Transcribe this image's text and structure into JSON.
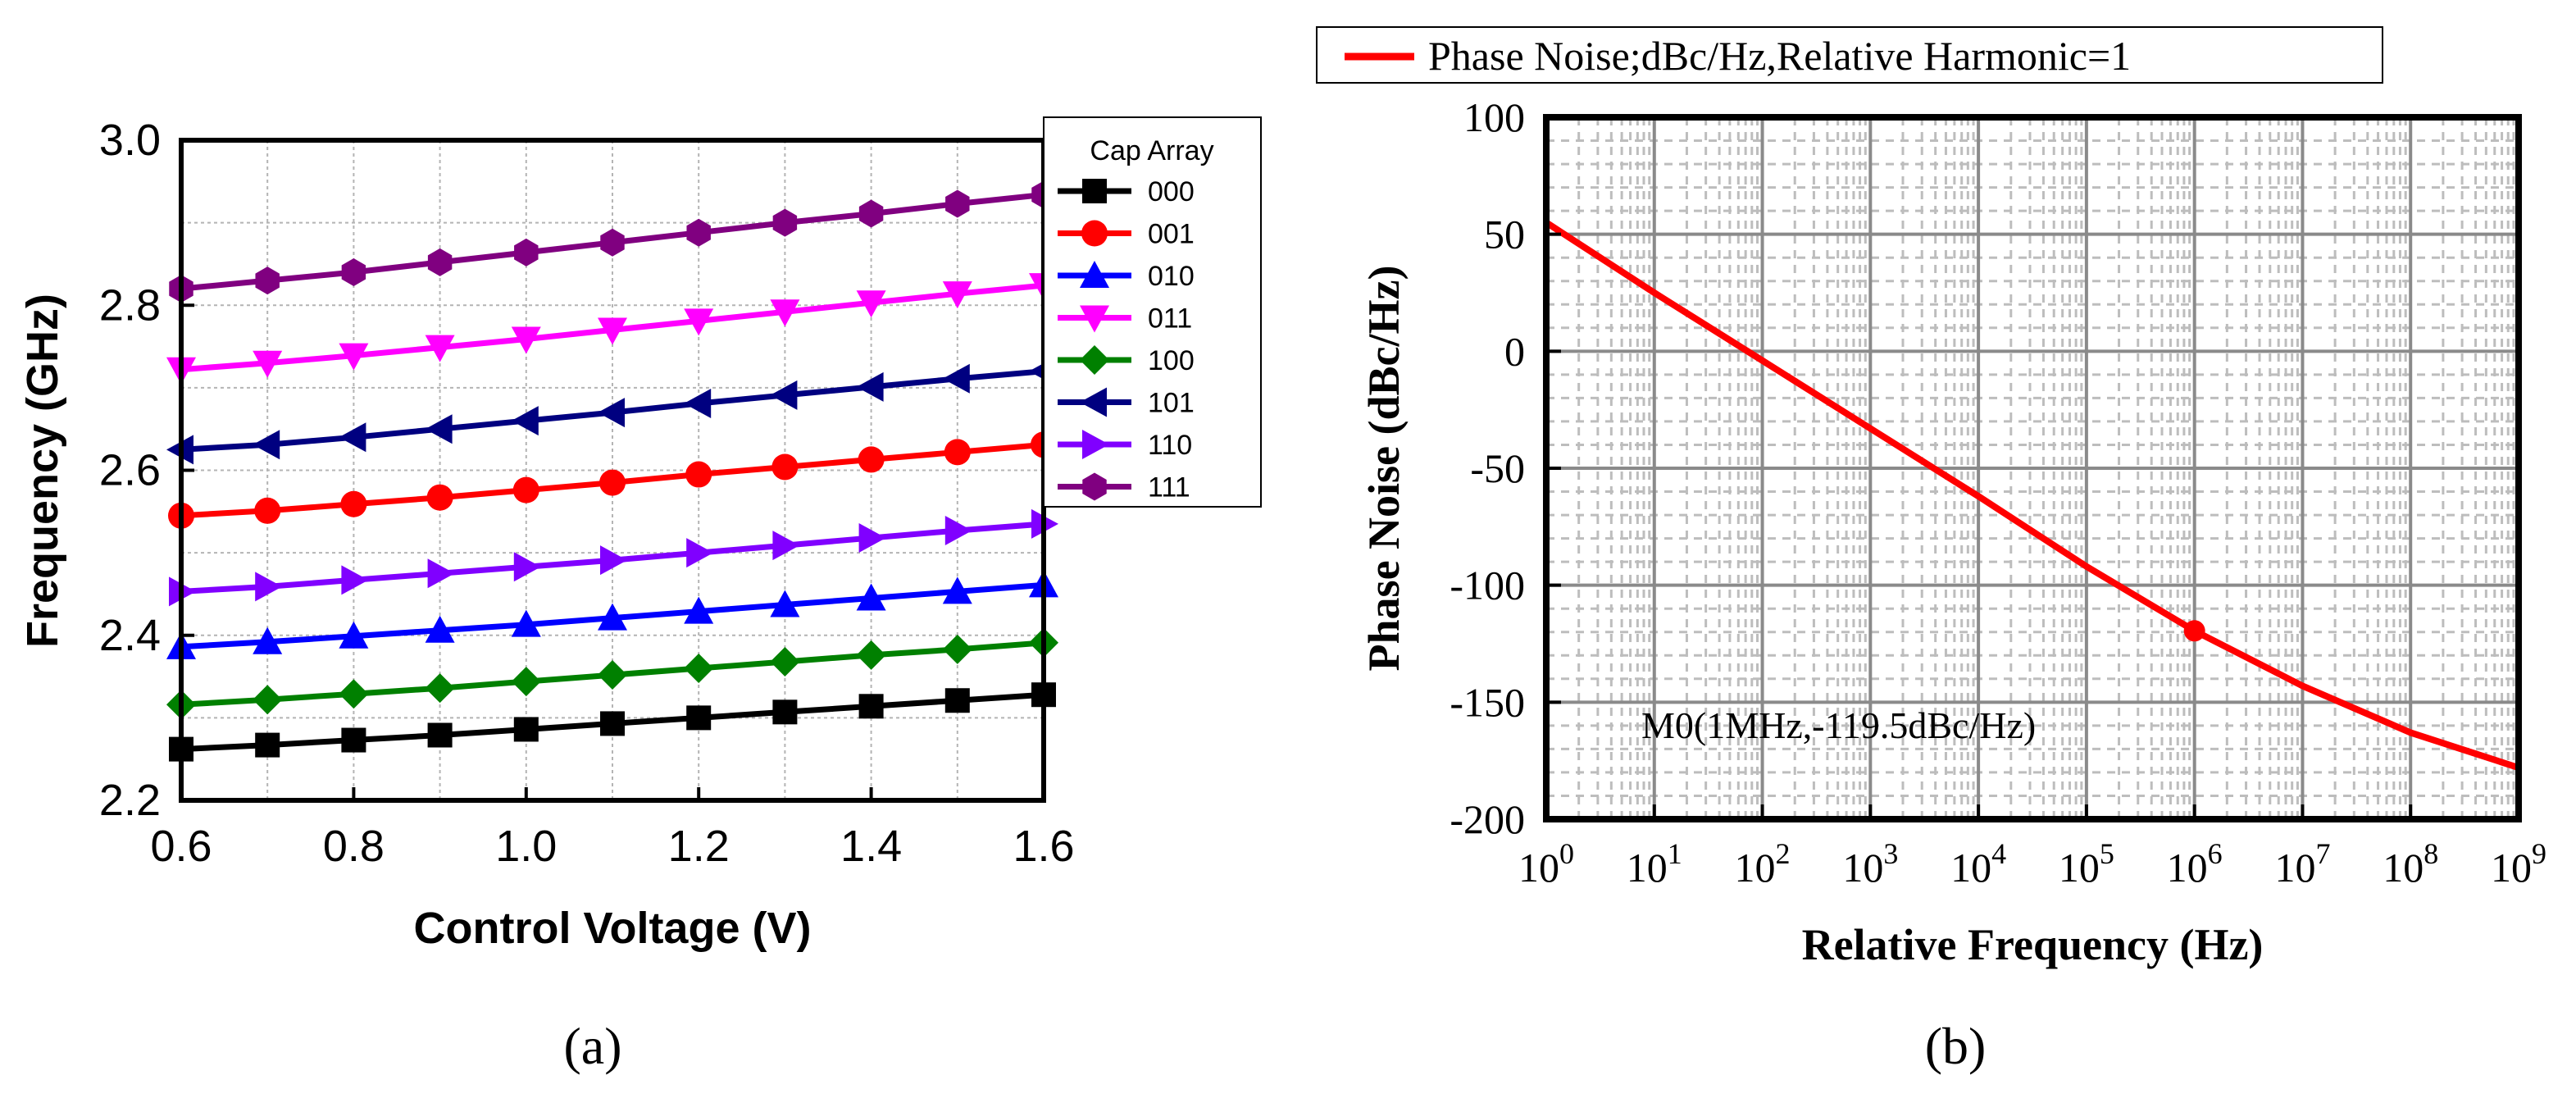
{
  "charts": {
    "a": {
      "caption": "(a)",
      "xlabel": "Control Voltage (V)",
      "ylabel": "Frequency (GHz)",
      "legend_title": "Cap Array",
      "xticks": [
        "0.6",
        "0.8",
        "1.0",
        "1.2",
        "1.4",
        "1.6"
      ],
      "yticks": [
        "2.2",
        "2.4",
        "2.6",
        "2.8",
        "3.0"
      ]
    },
    "b": {
      "caption": "(b)",
      "xlabel": "Relative Frequency (Hz)",
      "ylabel": "Phase Noise (dBc/Hz)",
      "legend_label": "Phase Noise;dBc/Hz,Relative Harmonic=1",
      "marker_label": "M0(1MHz,-119.5dBc/Hz)",
      "xtick_base": "10",
      "xtick_exps": [
        "0",
        "1",
        "2",
        "3",
        "4",
        "5",
        "6",
        "7",
        "8",
        "9"
      ],
      "yticks": [
        "100",
        "50",
        "0",
        "-50",
        "-100",
        "-150",
        "-200"
      ]
    }
  },
  "chart_data": [
    {
      "type": "line",
      "title": "",
      "xlabel": "Control Voltage (V)",
      "ylabel": "Frequency (GHz)",
      "xlim": [
        0.6,
        1.6
      ],
      "ylim": [
        2.2,
        3.0
      ],
      "grid": true,
      "legend": "top-right outside",
      "legend_title": "Cap Array",
      "x": [
        0.6,
        0.7,
        0.8,
        0.9,
        1.0,
        1.1,
        1.2,
        1.3,
        1.4,
        1.5,
        1.6
      ],
      "series": [
        {
          "name": "000",
          "color": "#000000",
          "marker": "square",
          "values": [
            2.262,
            2.267,
            2.273,
            2.279,
            2.286,
            2.293,
            2.3,
            2.307,
            2.314,
            2.321,
            2.328
          ]
        },
        {
          "name": "001",
          "color": "#ff0000",
          "marker": "circle",
          "values": [
            2.545,
            2.551,
            2.559,
            2.567,
            2.576,
            2.585,
            2.595,
            2.604,
            2.613,
            2.622,
            2.631
          ]
        },
        {
          "name": "010",
          "color": "#0000ff",
          "marker": "triangle-up",
          "values": [
            2.386,
            2.392,
            2.399,
            2.406,
            2.413,
            2.421,
            2.429,
            2.437,
            2.445,
            2.453,
            2.461
          ]
        },
        {
          "name": "011",
          "color": "#ff00ff",
          "marker": "triangle-down",
          "values": [
            2.722,
            2.73,
            2.739,
            2.749,
            2.759,
            2.77,
            2.781,
            2.792,
            2.803,
            2.814,
            2.824
          ]
        },
        {
          "name": "100",
          "color": "#008000",
          "marker": "diamond",
          "values": [
            2.316,
            2.322,
            2.329,
            2.336,
            2.344,
            2.352,
            2.36,
            2.368,
            2.376,
            2.383,
            2.391
          ]
        },
        {
          "name": "101",
          "color": "#000080",
          "marker": "triangle-left",
          "values": [
            2.625,
            2.631,
            2.64,
            2.65,
            2.66,
            2.67,
            2.681,
            2.691,
            2.701,
            2.711,
            2.72
          ]
        },
        {
          "name": "110",
          "color": "#8000ff",
          "marker": "triangle-right",
          "values": [
            2.453,
            2.459,
            2.467,
            2.475,
            2.483,
            2.491,
            2.5,
            2.509,
            2.518,
            2.527,
            2.535
          ]
        },
        {
          "name": "111",
          "color": "#800080",
          "marker": "hexagon",
          "values": [
            2.82,
            2.83,
            2.84,
            2.852,
            2.864,
            2.876,
            2.888,
            2.9,
            2.911,
            2.923,
            2.934
          ]
        }
      ]
    },
    {
      "type": "line",
      "title": "",
      "xlabel": "Relative Frequency (Hz)",
      "ylabel": "Phase Noise (dBc/Hz)",
      "xscale": "log",
      "xlim": [
        1,
        1000000000
      ],
      "ylim": [
        -200,
        100
      ],
      "grid": true,
      "legend": "top (above plot)",
      "series": [
        {
          "name": "Phase Noise;dBc/Hz,Relative Harmonic=1",
          "color": "#ff0000",
          "x": [
            1,
            10,
            100,
            1000,
            10000,
            100000,
            1000000,
            10000000,
            100000000,
            1000000000
          ],
          "values": [
            55,
            25,
            -4,
            -33,
            -62,
            -92,
            -119.5,
            -143,
            -163,
            -178
          ]
        }
      ],
      "annotations": [
        {
          "label": "M0(1MHz,-119.5dBc/Hz)",
          "x": 1000000,
          "y": -119.5
        }
      ]
    }
  ]
}
